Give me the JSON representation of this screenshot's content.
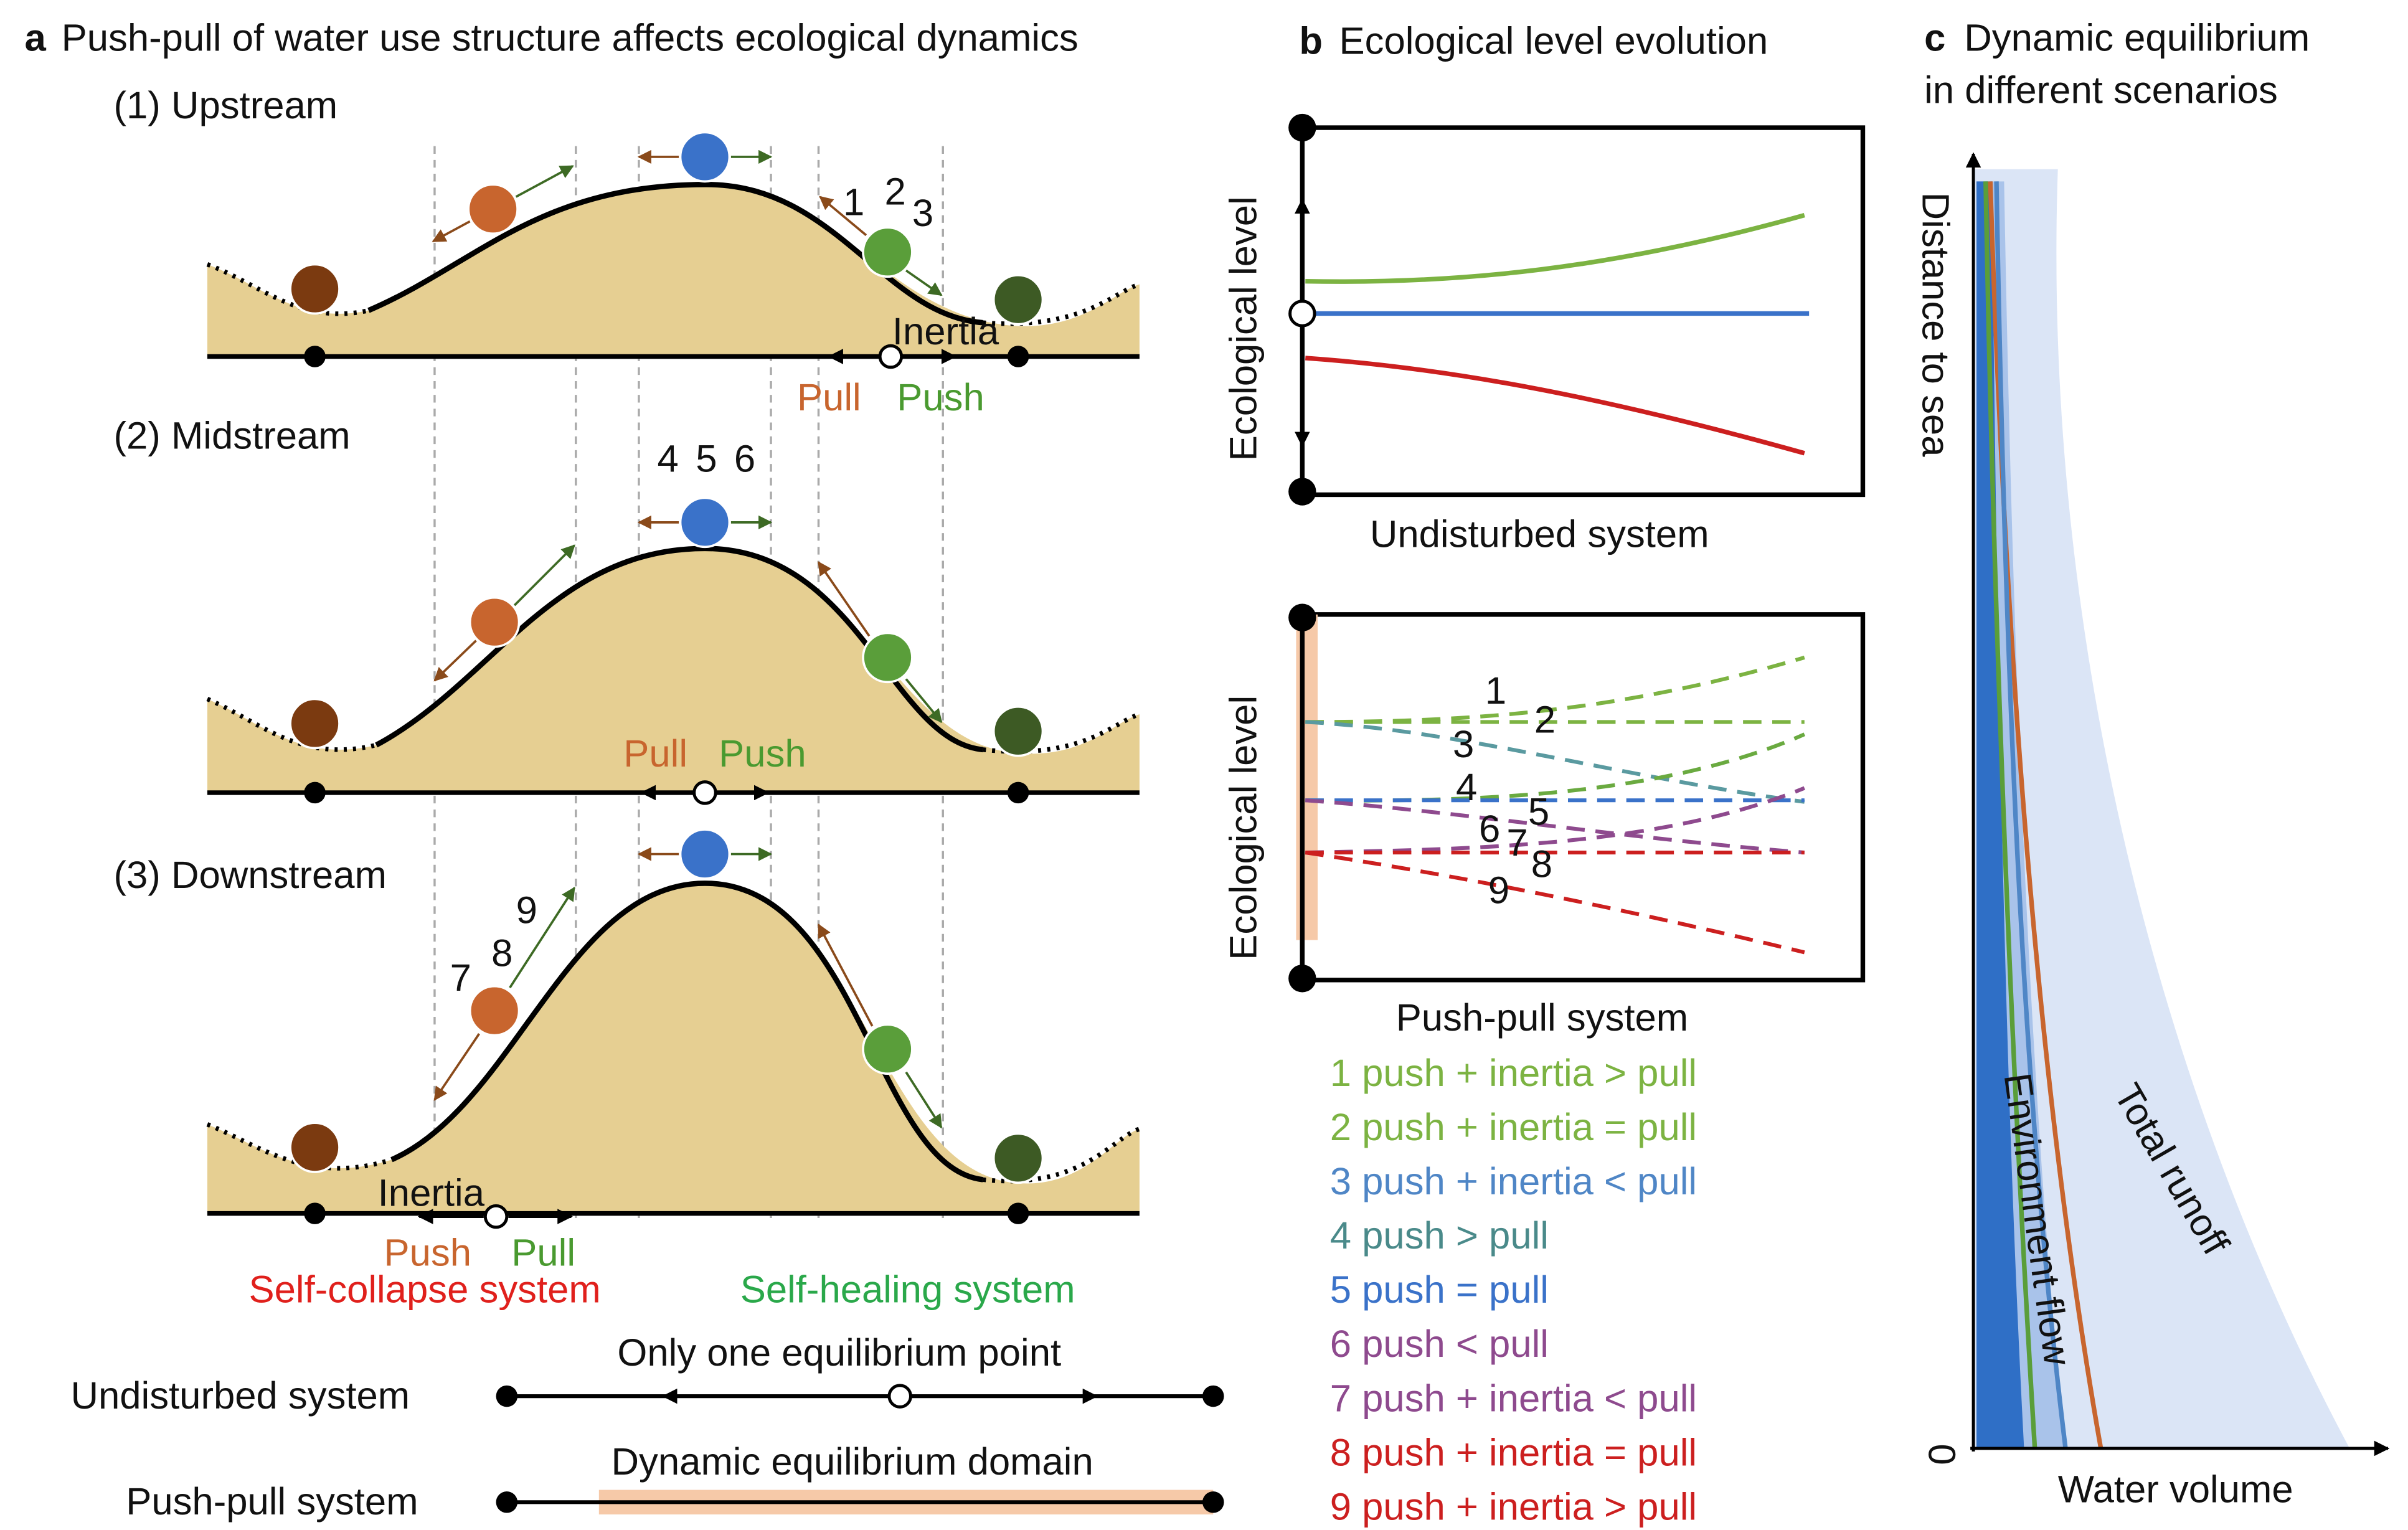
{
  "panel_a": {
    "letter": "a",
    "title": "Push-pull of water use structure affects ecological dynamics",
    "rows": [
      {
        "label": "(1) Upstream",
        "numbers": [
          "1",
          "2",
          "3"
        ],
        "inertia": "Inertia",
        "pull": "Pull",
        "push": "Push"
      },
      {
        "label": "(2) Midstream",
        "numbers": [
          "4",
          "5",
          "6"
        ],
        "pull": "Pull",
        "push": "Push"
      },
      {
        "label": "(3) Downstream",
        "numbers": [
          "7",
          "8",
          "9"
        ],
        "inertia": "Inertia",
        "push": "Push",
        "pull": "Pull"
      }
    ],
    "collapse": "Self-collapse system",
    "healing": "Self-healing system",
    "undisturbed": {
      "label": "Undisturbed system",
      "caption": "Only one equilibrium point"
    },
    "pushpull": {
      "label": "Push-pull system",
      "caption": "Dynamic equilibrium domain"
    }
  },
  "panel_b": {
    "letter": "b",
    "title": "Ecological level evolution",
    "top_ylabel": "Ecological level",
    "top_xlabel": "Undisturbed system",
    "bottom_ylabel": "Ecological level",
    "bottom_xlabel": "Push-pull system",
    "legend": [
      {
        "text": "1 push + inertia > pull",
        "color": "#7cb342"
      },
      {
        "text": "2 push + inertia = pull",
        "color": "#7cb342"
      },
      {
        "text": "3 push + inertia < pull",
        "color": "#4f86c6"
      },
      {
        "text": "4 push > pull",
        "color": "#4a8a8a"
      },
      {
        "text": "5 push = pull",
        "color": "#3a72c9"
      },
      {
        "text": "6 push < pull",
        "color": "#8e4a8e"
      },
      {
        "text": "7 push + inertia < pull",
        "color": "#8e4a8e"
      },
      {
        "text": "8 push + inertia = pull",
        "color": "#cc1f1f"
      },
      {
        "text": "9 push + inertia > pull",
        "color": "#cc1f1f"
      }
    ]
  },
  "panel_c": {
    "letter": "c",
    "title_lines": [
      "Dynamic equilibrium",
      "in different scenarios"
    ],
    "ylabel": "Distance to sea",
    "xlabel": "Water volume",
    "origin": "0",
    "total_label": "Total runoff",
    "env_label": "Environment flow"
  }
}
